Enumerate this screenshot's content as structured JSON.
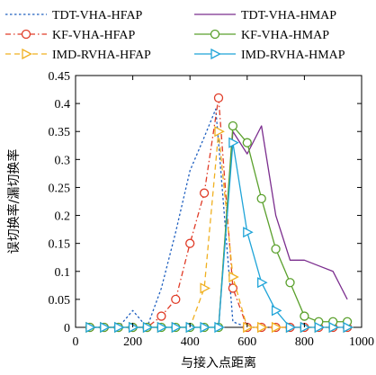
{
  "chart_data": {
    "type": "line",
    "xlabel": "与接入点距离",
    "ylabel": "误切换率/漏切换率",
    "xlim": [
      0,
      1000
    ],
    "ylim": [
      0,
      0.45
    ],
    "xticks": [
      0,
      200,
      400,
      600,
      800,
      1000
    ],
    "yticks": [
      0,
      0.05,
      0.1,
      0.15,
      0.2,
      0.25,
      0.3,
      0.35,
      0.4,
      0.45
    ],
    "xtick_labels": [
      "0",
      "200",
      "400",
      "600",
      "800",
      "1000"
    ],
    "ytick_labels": [
      "0",
      "0.05",
      "0.1",
      "0.15",
      "0.2",
      "0.25",
      "0.3",
      "0.35",
      "0.4",
      "0.45"
    ],
    "grid": false,
    "legend_position": "top (outside, two columns)",
    "series": [
      {
        "name": "TDT-VHA-HFAP",
        "color": "#1f5fbf",
        "line": "dotted",
        "marker": "none",
        "x": [
          50,
          100,
          150,
          200,
          250,
          300,
          350,
          400,
          450,
          490,
          500,
          550,
          600
        ],
        "y": [
          0,
          0,
          0,
          0.03,
          0,
          0.07,
          0.17,
          0.28,
          0.34,
          0.39,
          0.33,
          0.01,
          0
        ]
      },
      {
        "name": "KF-VHA-HFAP",
        "color": "#e03c28",
        "line": "dash-dot",
        "marker": "circle",
        "x": [
          50,
          100,
          150,
          200,
          250,
          300,
          350,
          400,
          450,
          500,
          550,
          600,
          650,
          700,
          750,
          800,
          850,
          900,
          950
        ],
        "y": [
          0,
          0,
          0,
          0,
          0,
          0.02,
          0.05,
          0.15,
          0.24,
          0.41,
          0.07,
          0,
          0,
          0,
          0,
          0,
          0,
          0,
          0
        ]
      },
      {
        "name": "IMD-RVHA-HFAP",
        "color": "#f0b020",
        "line": "dashed",
        "marker": "triangle-right",
        "x": [
          50,
          100,
          150,
          200,
          250,
          300,
          350,
          400,
          450,
          500,
          550,
          600,
          650,
          700,
          750,
          800,
          850,
          900,
          950
        ],
        "y": [
          0,
          0,
          0,
          0,
          0,
          0,
          0,
          0,
          0.07,
          0.35,
          0.09,
          0,
          0,
          0,
          0,
          0,
          0,
          0,
          0
        ]
      },
      {
        "name": "TDT-VHA-HMAP",
        "color": "#7b2d8e",
        "line": "solid",
        "marker": "none",
        "x": [
          500,
          550,
          600,
          650,
          700,
          750,
          800,
          850,
          900,
          950
        ],
        "y": [
          0,
          0.35,
          0.31,
          0.36,
          0.2,
          0.12,
          0.12,
          0.11,
          0.1,
          0.05
        ]
      },
      {
        "name": "KF-VHA-HMAP",
        "color": "#5aa02c",
        "line": "solid",
        "marker": "circle",
        "x": [
          50,
          100,
          150,
          200,
          250,
          300,
          350,
          400,
          450,
          500,
          550,
          600,
          650,
          700,
          750,
          800,
          850,
          900,
          950
        ],
        "y": [
          0,
          0,
          0,
          0,
          0,
          0,
          0,
          0,
          0,
          0,
          0.36,
          0.33,
          0.23,
          0.14,
          0.08,
          0.02,
          0.01,
          0.01,
          0.01
        ]
      },
      {
        "name": "IMD-RVHA-HMAP",
        "color": "#1fa4d8",
        "line": "solid",
        "marker": "triangle-right",
        "x": [
          50,
          100,
          150,
          200,
          250,
          300,
          350,
          400,
          450,
          500,
          550,
          600,
          650,
          700,
          750,
          800,
          850,
          900,
          950
        ],
        "y": [
          0,
          0,
          0,
          0,
          0,
          0,
          0,
          0,
          0,
          0,
          0.33,
          0.17,
          0.08,
          0.03,
          0,
          0,
          0,
          0,
          0
        ]
      }
    ]
  }
}
